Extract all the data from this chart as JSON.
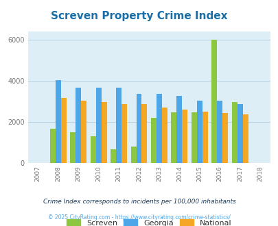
{
  "title": "Screven Property Crime Index",
  "title_color": "#1a6fa8",
  "years": [
    2007,
    2008,
    2009,
    2010,
    2011,
    2012,
    2013,
    2014,
    2015,
    2016,
    2017,
    2018
  ],
  "data_years": [
    2008,
    2009,
    2010,
    2011,
    2012,
    2013,
    2014,
    2015,
    2016,
    2017
  ],
  "screven": [
    1650,
    1500,
    1300,
    650,
    780,
    2200,
    2450,
    2450,
    6000,
    2950
  ],
  "georgia": [
    4020,
    3680,
    3650,
    3650,
    3380,
    3360,
    3280,
    3020,
    3020,
    2850
  ],
  "national": [
    3150,
    3020,
    2950,
    2870,
    2850,
    2700,
    2580,
    2480,
    2420,
    2360
  ],
  "screven_color": "#8dc63f",
  "georgia_color": "#4da6e8",
  "national_color": "#f5a623",
  "fig_bg_color": "#ffffff",
  "plot_bg_color": "#ddeef6",
  "ylim": [
    0,
    6400
  ],
  "yticks": [
    0,
    2000,
    4000,
    6000
  ],
  "footnote1": "Crime Index corresponds to incidents per 100,000 inhabitants",
  "footnote2": "© 2025 CityRating.com - https://www.cityrating.com/crime-statistics/",
  "footnote1_color": "#1a3a5c",
  "footnote2_color": "#4da6e8",
  "legend_labels": [
    "Screven",
    "Georgia",
    "National"
  ],
  "legend_text_color": "#333333"
}
